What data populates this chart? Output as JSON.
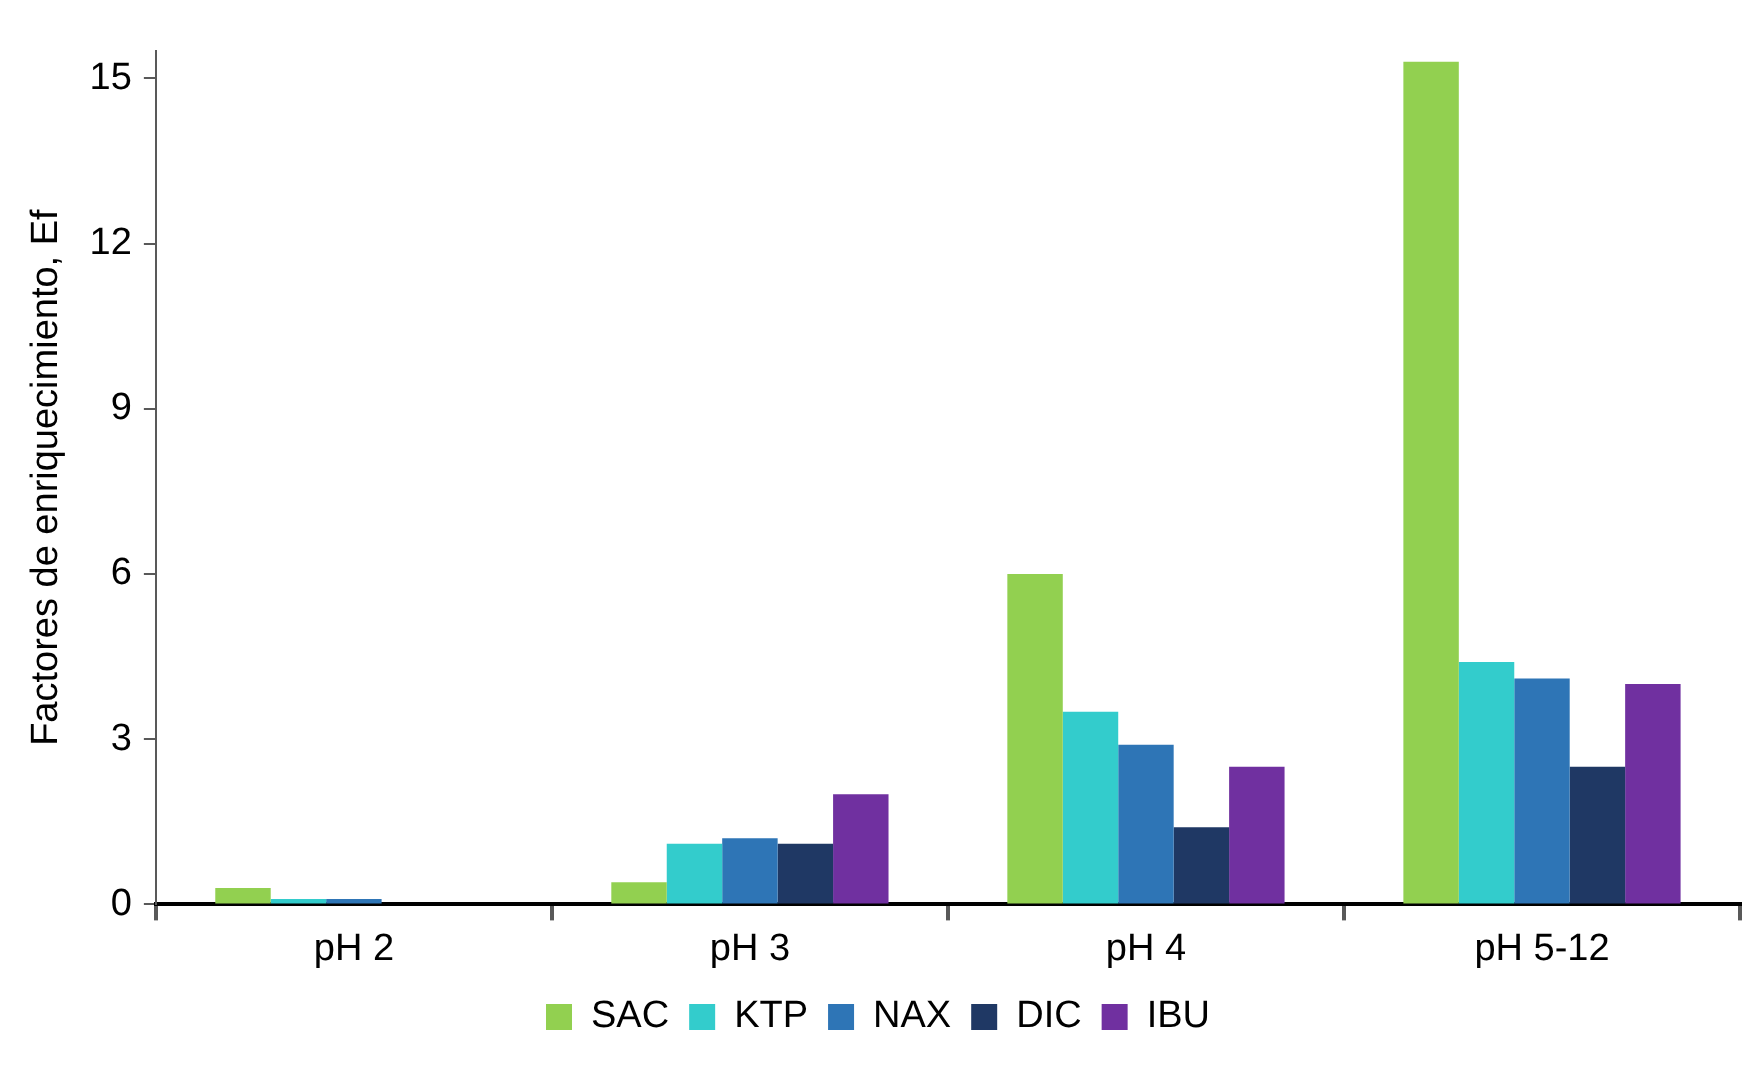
{
  "chart_data": {
    "type": "bar",
    "ylabel": "Factores de enriquecimiento, Ef",
    "categories": [
      "pH 2",
      "pH 3",
      "pH 4",
      "pH 5-12"
    ],
    "series": [
      {
        "name": "SAC",
        "color": "#92d050",
        "values": [
          0.3,
          0.4,
          6.0,
          15.3
        ]
      },
      {
        "name": "KTP",
        "color": "#33cccc",
        "values": [
          0.1,
          1.1,
          3.5,
          4.4
        ]
      },
      {
        "name": "NAX",
        "color": "#2e75b6",
        "values": [
          0.1,
          1.2,
          2.9,
          4.1
        ]
      },
      {
        "name": "DIC",
        "color": "#1f3864",
        "values": [
          0,
          1.1,
          1.4,
          2.5
        ]
      },
      {
        "name": "IBU",
        "color": "#7030a0",
        "values": [
          0,
          2.0,
          2.5,
          4.0
        ]
      }
    ],
    "ylim": [
      0,
      15.5
    ],
    "yticks": [
      0,
      3,
      6,
      9,
      12,
      15
    ],
    "grid": false,
    "legend": "bottom"
  }
}
